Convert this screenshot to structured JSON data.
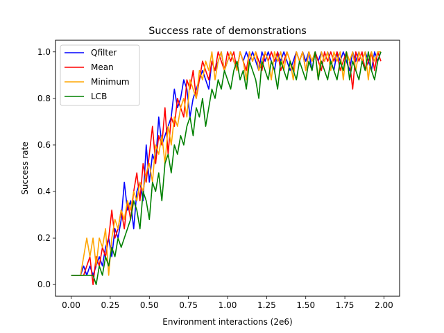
{
  "chart_data": {
    "type": "line",
    "title": "Success rate of demonstrations",
    "xlabel": "Environment interactions (2e6)",
    "ylabel": "Success rate",
    "xlim": [
      -0.1,
      2.1
    ],
    "ylim": [
      -0.05,
      1.05
    ],
    "x_ticks": [
      0.0,
      0.25,
      0.5,
      0.75,
      1.0,
      1.25,
      1.5,
      1.75,
      2.0
    ],
    "x_tick_labels": [
      "0.00",
      "0.25",
      "0.50",
      "0.75",
      "1.00",
      "1.25",
      "1.50",
      "1.75",
      "2.00"
    ],
    "y_ticks": [
      0.0,
      0.2,
      0.4,
      0.6,
      0.8,
      1.0
    ],
    "y_tick_labels": [
      "0.0",
      "0.2",
      "0.4",
      "0.6",
      "0.8",
      "1.0"
    ],
    "grid": false,
    "legend_position": "upper-left",
    "series": [
      {
        "name": "Qfilter",
        "color": "#0000ff",
        "x": [
          0.0,
          0.06,
          0.08,
          0.1,
          0.12,
          0.14,
          0.16,
          0.18,
          0.2,
          0.22,
          0.24,
          0.26,
          0.28,
          0.3,
          0.32,
          0.34,
          0.36,
          0.38,
          0.4,
          0.42,
          0.44,
          0.46,
          0.48,
          0.5,
          0.52,
          0.54,
          0.56,
          0.58,
          0.6,
          0.62,
          0.64,
          0.66,
          0.68,
          0.7,
          0.72,
          0.74,
          0.76,
          0.78,
          0.8,
          0.82,
          0.84,
          0.86,
          0.88,
          0.9,
          0.92,
          0.94,
          0.96,
          0.98,
          1.0,
          1.02,
          1.04,
          1.06,
          1.08,
          1.1,
          1.12,
          1.14,
          1.16,
          1.18,
          1.2,
          1.22,
          1.24,
          1.26,
          1.28,
          1.3,
          1.32,
          1.34,
          1.36,
          1.38,
          1.4,
          1.42,
          1.44,
          1.46,
          1.48,
          1.5,
          1.52,
          1.54,
          1.56,
          1.58,
          1.6,
          1.62,
          1.64,
          1.66,
          1.68,
          1.7,
          1.72,
          1.74,
          1.76,
          1.78,
          1.8,
          1.82,
          1.84,
          1.86,
          1.88,
          1.9,
          1.92,
          1.94,
          1.96,
          1.98
        ],
        "y": [
          0.04,
          0.04,
          0.08,
          0.04,
          0.08,
          0.04,
          0.08,
          0.12,
          0.08,
          0.16,
          0.2,
          0.12,
          0.24,
          0.2,
          0.28,
          0.44,
          0.32,
          0.36,
          0.24,
          0.4,
          0.44,
          0.36,
          0.6,
          0.44,
          0.56,
          0.52,
          0.72,
          0.6,
          0.64,
          0.68,
          0.72,
          0.84,
          0.76,
          0.8,
          0.88,
          0.84,
          0.72,
          0.8,
          0.84,
          0.88,
          0.92,
          0.88,
          0.84,
          0.96,
          0.92,
          0.96,
          1.0,
          0.92,
          0.96,
          1.0,
          0.96,
          0.92,
          1.0,
          0.96,
          1.0,
          0.96,
          1.0,
          0.96,
          0.92,
          1.0,
          0.96,
          1.0,
          0.96,
          0.92,
          1.0,
          0.96,
          1.0,
          0.96,
          0.92,
          0.96,
          1.0,
          0.96,
          1.0,
          0.96,
          1.0,
          0.92,
          1.0,
          0.96,
          1.0,
          0.96,
          1.0,
          0.96,
          0.92,
          1.0,
          0.96,
          1.0,
          0.96,
          0.92,
          1.0,
          0.96,
          1.0,
          0.96,
          1.0,
          0.96,
          0.92,
          1.0,
          0.96,
          1.0
        ]
      },
      {
        "name": "Mean",
        "color": "#ff0000",
        "x": [
          0.0,
          0.06,
          0.08,
          0.1,
          0.12,
          0.14,
          0.16,
          0.18,
          0.2,
          0.22,
          0.24,
          0.26,
          0.28,
          0.3,
          0.32,
          0.34,
          0.36,
          0.38,
          0.4,
          0.42,
          0.44,
          0.46,
          0.48,
          0.5,
          0.52,
          0.54,
          0.56,
          0.58,
          0.6,
          0.62,
          0.64,
          0.66,
          0.68,
          0.7,
          0.72,
          0.74,
          0.76,
          0.78,
          0.8,
          0.82,
          0.84,
          0.86,
          0.88,
          0.9,
          0.92,
          0.94,
          0.96,
          0.98,
          1.0,
          1.02,
          1.04,
          1.06,
          1.08,
          1.1,
          1.12,
          1.14,
          1.16,
          1.18,
          1.2,
          1.22,
          1.24,
          1.26,
          1.28,
          1.3,
          1.32,
          1.34,
          1.36,
          1.38,
          1.4,
          1.42,
          1.44,
          1.46,
          1.48,
          1.5,
          1.52,
          1.54,
          1.56,
          1.58,
          1.6,
          1.62,
          1.64,
          1.66,
          1.68,
          1.7,
          1.72,
          1.74,
          1.76,
          1.78,
          1.8,
          1.82,
          1.84,
          1.86,
          1.88,
          1.9,
          1.92,
          1.94,
          1.96,
          1.98
        ],
        "y": [
          0.04,
          0.04,
          0.04,
          0.08,
          0.12,
          0.0,
          0.12,
          0.08,
          0.16,
          0.12,
          0.2,
          0.32,
          0.2,
          0.24,
          0.32,
          0.24,
          0.36,
          0.28,
          0.4,
          0.48,
          0.36,
          0.52,
          0.44,
          0.56,
          0.68,
          0.52,
          0.64,
          0.6,
          0.76,
          0.56,
          0.72,
          0.68,
          0.8,
          0.76,
          0.72,
          0.88,
          0.84,
          0.92,
          0.8,
          0.88,
          0.96,
          0.92,
          0.88,
          0.96,
          0.92,
          1.0,
          0.96,
          0.92,
          1.0,
          0.96,
          1.0,
          0.92,
          1.0,
          0.96,
          0.92,
          1.0,
          0.96,
          1.0,
          0.96,
          0.92,
          1.0,
          0.96,
          1.0,
          0.96,
          1.0,
          0.92,
          0.96,
          1.0,
          0.96,
          0.92,
          1.0,
          0.96,
          1.0,
          0.92,
          1.0,
          0.96,
          1.0,
          0.96,
          0.92,
          1.0,
          0.96,
          1.0,
          0.96,
          1.0,
          0.92,
          0.96,
          1.0,
          0.96,
          0.84,
          1.0,
          0.96,
          1.0,
          0.92,
          0.96,
          1.0,
          0.92,
          1.0,
          0.96
        ]
      },
      {
        "name": "Minimum",
        "color": "#ffa500",
        "x": [
          0.0,
          0.06,
          0.08,
          0.1,
          0.12,
          0.14,
          0.16,
          0.18,
          0.2,
          0.22,
          0.24,
          0.26,
          0.28,
          0.3,
          0.32,
          0.34,
          0.36,
          0.38,
          0.4,
          0.42,
          0.44,
          0.46,
          0.48,
          0.5,
          0.52,
          0.54,
          0.56,
          0.58,
          0.6,
          0.62,
          0.64,
          0.66,
          0.68,
          0.7,
          0.72,
          0.74,
          0.76,
          0.78,
          0.8,
          0.82,
          0.84,
          0.86,
          0.88,
          0.9,
          0.92,
          0.94,
          0.96,
          0.98,
          1.0,
          1.02,
          1.04,
          1.06,
          1.08,
          1.1,
          1.12,
          1.14,
          1.16,
          1.18,
          1.2,
          1.22,
          1.24,
          1.26,
          1.28,
          1.3,
          1.32,
          1.34,
          1.36,
          1.38,
          1.4,
          1.42,
          1.44,
          1.46,
          1.48,
          1.5,
          1.52,
          1.54,
          1.56,
          1.58,
          1.6,
          1.62,
          1.64,
          1.66,
          1.68,
          1.7,
          1.72,
          1.74,
          1.76,
          1.78,
          1.8,
          1.82,
          1.84,
          1.86,
          1.88,
          1.9,
          1.92,
          1.94,
          1.96,
          1.98
        ],
        "y": [
          0.04,
          0.04,
          0.12,
          0.2,
          0.12,
          0.2,
          0.08,
          0.2,
          0.16,
          0.24,
          0.04,
          0.2,
          0.28,
          0.24,
          0.32,
          0.28,
          0.36,
          0.32,
          0.4,
          0.36,
          0.44,
          0.4,
          0.48,
          0.52,
          0.44,
          0.6,
          0.56,
          0.64,
          0.52,
          0.68,
          0.6,
          0.72,
          0.68,
          0.76,
          0.8,
          0.72,
          0.88,
          0.84,
          0.8,
          0.92,
          0.88,
          0.96,
          0.92,
          1.0,
          0.88,
          0.96,
          1.0,
          0.92,
          0.96,
          1.0,
          0.96,
          0.92,
          1.0,
          0.96,
          0.88,
          1.0,
          0.96,
          1.0,
          0.92,
          0.96,
          1.0,
          0.96,
          0.88,
          1.0,
          0.96,
          1.0,
          0.92,
          1.0,
          0.96,
          0.88,
          1.0,
          0.96,
          1.0,
          0.92,
          1.0,
          0.96,
          1.0,
          0.88,
          1.0,
          0.96,
          1.0,
          0.92,
          1.0,
          0.96,
          1.0,
          0.88,
          1.0,
          0.96,
          1.0,
          0.92,
          1.0,
          0.96,
          1.0,
          0.88,
          1.0,
          0.96,
          1.0,
          1.0
        ]
      },
      {
        "name": "LCB",
        "color": "#008000",
        "x": [
          0.0,
          0.06,
          0.08,
          0.1,
          0.12,
          0.14,
          0.16,
          0.18,
          0.2,
          0.22,
          0.24,
          0.26,
          0.28,
          0.3,
          0.32,
          0.34,
          0.36,
          0.38,
          0.4,
          0.42,
          0.44,
          0.46,
          0.48,
          0.5,
          0.52,
          0.54,
          0.56,
          0.58,
          0.6,
          0.62,
          0.64,
          0.66,
          0.68,
          0.7,
          0.72,
          0.74,
          0.76,
          0.78,
          0.8,
          0.82,
          0.84,
          0.86,
          0.88,
          0.9,
          0.92,
          0.94,
          0.96,
          0.98,
          1.0,
          1.02,
          1.04,
          1.06,
          1.08,
          1.1,
          1.12,
          1.14,
          1.16,
          1.18,
          1.2,
          1.22,
          1.24,
          1.26,
          1.28,
          1.3,
          1.32,
          1.34,
          1.36,
          1.38,
          1.4,
          1.42,
          1.44,
          1.46,
          1.48,
          1.5,
          1.52,
          1.54,
          1.56,
          1.58,
          1.6,
          1.62,
          1.64,
          1.66,
          1.68,
          1.7,
          1.72,
          1.74,
          1.76,
          1.78,
          1.8,
          1.82,
          1.84,
          1.86,
          1.88,
          1.9,
          1.92,
          1.94,
          1.96,
          1.98
        ],
        "y": [
          0.04,
          0.04,
          0.04,
          0.04,
          0.04,
          0.04,
          0.0,
          0.08,
          0.04,
          0.12,
          0.08,
          0.16,
          0.12,
          0.2,
          0.16,
          0.2,
          0.24,
          0.28,
          0.36,
          0.32,
          0.24,
          0.4,
          0.36,
          0.28,
          0.44,
          0.4,
          0.48,
          0.36,
          0.52,
          0.56,
          0.48,
          0.6,
          0.56,
          0.64,
          0.6,
          0.68,
          0.72,
          0.64,
          0.76,
          0.72,
          0.8,
          0.68,
          0.76,
          0.84,
          0.8,
          0.88,
          0.84,
          0.92,
          0.88,
          0.84,
          0.92,
          0.96,
          0.88,
          0.92,
          0.84,
          0.96,
          0.92,
          0.88,
          0.8,
          0.96,
          0.92,
          0.88,
          0.96,
          0.92,
          0.84,
          0.96,
          0.92,
          0.88,
          0.96,
          0.92,
          0.88,
          0.96,
          0.92,
          0.88,
          0.96,
          0.92,
          1.0,
          0.88,
          0.96,
          0.92,
          0.88,
          0.96,
          0.92,
          0.88,
          0.96,
          0.92,
          1.0,
          0.88,
          0.96,
          0.92,
          0.88,
          0.96,
          0.92,
          1.0,
          0.92,
          0.88,
          0.96,
          1.0
        ]
      }
    ]
  }
}
